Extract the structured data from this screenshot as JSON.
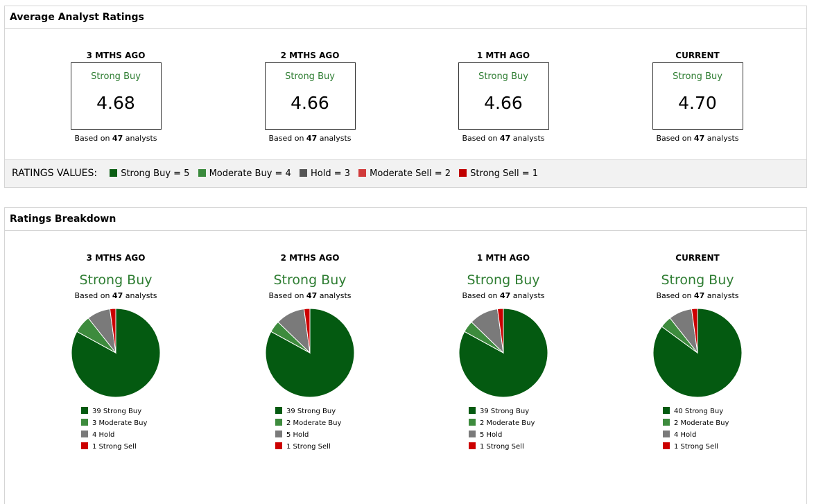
{
  "avg_section": {
    "title": "Average Analyst Ratings",
    "periods": [
      {
        "label": "3 MTHS AGO",
        "rating": "Strong Buy",
        "score": "4.68",
        "based_prefix": "Based on ",
        "count": "47",
        "based_suffix": " analysts"
      },
      {
        "label": "2 MTHS AGO",
        "rating": "Strong Buy",
        "score": "4.66",
        "based_prefix": "Based on ",
        "count": "47",
        "based_suffix": " analysts"
      },
      {
        "label": "1 MTH AGO",
        "rating": "Strong Buy",
        "score": "4.66",
        "based_prefix": "Based on ",
        "count": "47",
        "based_suffix": " analysts"
      },
      {
        "label": "CURRENT",
        "rating": "Strong Buy",
        "score": "4.70",
        "based_prefix": "Based on ",
        "count": "47",
        "based_suffix": " analysts"
      }
    ],
    "legend": {
      "title": "RATINGS VALUES:",
      "items": [
        {
          "label": "Strong Buy = 5",
          "color": "#0b5e14"
        },
        {
          "label": "Moderate Buy = 4",
          "color": "#3a8a3c"
        },
        {
          "label": "Hold = 3",
          "color": "#555555"
        },
        {
          "label": "Moderate Sell = 2",
          "color": "#d13b3b"
        },
        {
          "label": "Strong Sell = 1",
          "color": "#c00000"
        }
      ]
    }
  },
  "breakdown_section": {
    "title": "Ratings Breakdown"
  },
  "colors": {
    "strong_buy": "#045a11",
    "moderate_buy": "#3d8b3d",
    "hold": "#7a7a7a",
    "strong_sell": "#cc0000"
  },
  "chart_data": [
    {
      "type": "pie",
      "title": "3 MTHS AGO",
      "subtitle": "Strong Buy",
      "based_prefix": "Based on ",
      "count": "47",
      "based_suffix": " analysts",
      "slices": [
        {
          "name": "Strong Buy",
          "value": 39,
          "label": "39 Strong Buy"
        },
        {
          "name": "Moderate Buy",
          "value": 3,
          "label": "3 Moderate Buy"
        },
        {
          "name": "Hold",
          "value": 4,
          "label": "4 Hold"
        },
        {
          "name": "Strong Sell",
          "value": 1,
          "label": "1 Strong Sell"
        }
      ]
    },
    {
      "type": "pie",
      "title": "2 MTHS AGO",
      "subtitle": "Strong Buy",
      "based_prefix": "Based on ",
      "count": "47",
      "based_suffix": " analysts",
      "slices": [
        {
          "name": "Strong Buy",
          "value": 39,
          "label": "39 Strong Buy"
        },
        {
          "name": "Moderate Buy",
          "value": 2,
          "label": "2 Moderate Buy"
        },
        {
          "name": "Hold",
          "value": 5,
          "label": "5 Hold"
        },
        {
          "name": "Strong Sell",
          "value": 1,
          "label": "1 Strong Sell"
        }
      ]
    },
    {
      "type": "pie",
      "title": "1 MTH AGO",
      "subtitle": "Strong Buy",
      "based_prefix": "Based on ",
      "count": "47",
      "based_suffix": " analysts",
      "slices": [
        {
          "name": "Strong Buy",
          "value": 39,
          "label": "39 Strong Buy"
        },
        {
          "name": "Moderate Buy",
          "value": 2,
          "label": "2 Moderate Buy"
        },
        {
          "name": "Hold",
          "value": 5,
          "label": "5 Hold"
        },
        {
          "name": "Strong Sell",
          "value": 1,
          "label": "1 Strong Sell"
        }
      ]
    },
    {
      "type": "pie",
      "title": "CURRENT",
      "subtitle": "Strong Buy",
      "based_prefix": "Based on ",
      "count": "47",
      "based_suffix": " analysts",
      "slices": [
        {
          "name": "Strong Buy",
          "value": 40,
          "label": "40 Strong Buy"
        },
        {
          "name": "Moderate Buy",
          "value": 2,
          "label": "2 Moderate Buy"
        },
        {
          "name": "Hold",
          "value": 4,
          "label": "4 Hold"
        },
        {
          "name": "Strong Sell",
          "value": 1,
          "label": "1 Strong Sell"
        }
      ]
    }
  ]
}
